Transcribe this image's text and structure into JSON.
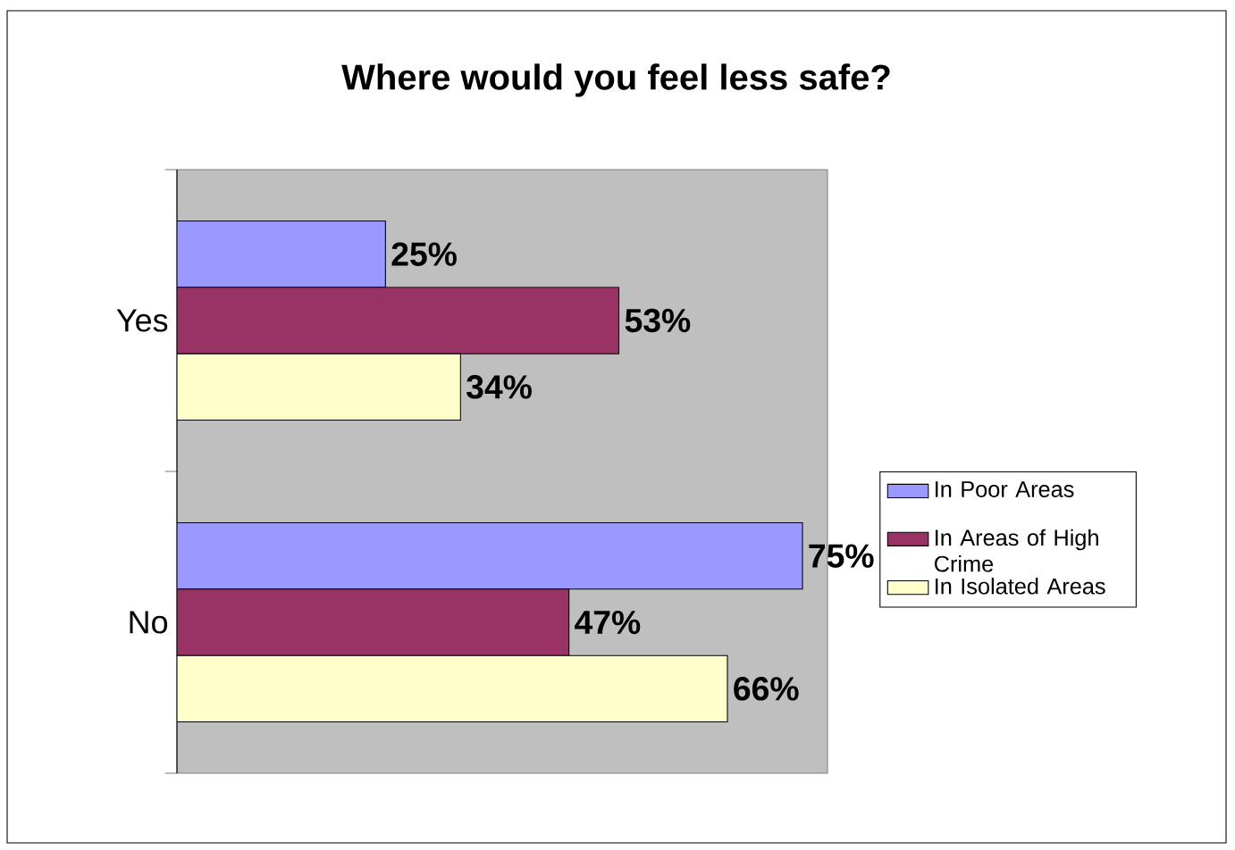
{
  "chart_data": {
    "type": "bar",
    "orientation": "horizontal",
    "title": "Where would you feel less safe?",
    "categories": [
      "Yes",
      "No"
    ],
    "series": [
      {
        "name": "In Poor Areas",
        "color": "#9999ff",
        "values": [
          25,
          75
        ],
        "value_labels": [
          "25%",
          "75%"
        ]
      },
      {
        "name": "In Areas of High Crime",
        "color": "#993366",
        "values": [
          53,
          47
        ],
        "value_labels": [
          "53%",
          "47%"
        ]
      },
      {
        "name": "In Isolated Areas",
        "color": "#ffffcc",
        "values": [
          34,
          66
        ],
        "value_labels": [
          "34%",
          "66%"
        ]
      }
    ],
    "xlim": [
      0,
      78
    ],
    "tick_labels": "y",
    "legend": "right"
  }
}
